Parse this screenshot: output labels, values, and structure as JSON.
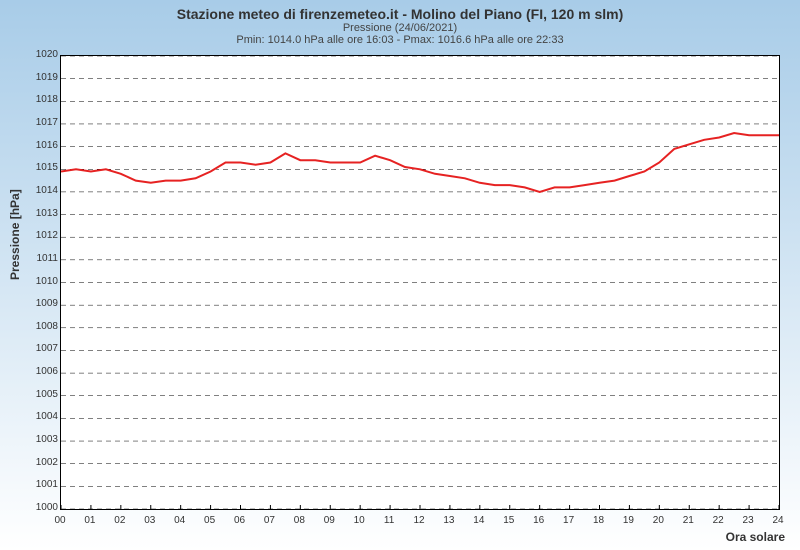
{
  "chart": {
    "type": "line",
    "title": "Stazione meteo di firenzemeteo.it - Molino del Piano (FI, 120 m slm)",
    "subtitle1": "Pressione (24/06/2021)",
    "subtitle2": "Pmin: 1014.0 hPa alle ore 16:03 - Pmax: 1016.6 hPa alle ore 22:33",
    "ylabel": "Pressione [hPa]",
    "xlabel": "Ora solare",
    "background_gradient_top": "#a8cce8",
    "background_gradient_bottom": "#ffffff",
    "plot_background": "#ffffff",
    "line_color": "#e62222",
    "line_width": 2,
    "grid_color": "#000000",
    "grid_style": "dashed",
    "border_color": "#000000",
    "xlim": [
      0,
      24
    ],
    "ylim": [
      1000,
      1020
    ],
    "xtick_step": 1,
    "ytick_step": 1,
    "title_fontsize": 14,
    "subtitle_fontsize": 11,
    "tick_fontsize": 10,
    "label_fontsize": 12,
    "x": [
      0,
      0.5,
      1,
      1.5,
      2,
      2.5,
      3,
      3.5,
      4,
      4.5,
      5,
      5.5,
      6,
      6.5,
      7,
      7.5,
      8,
      8.5,
      9,
      9.5,
      10,
      10.5,
      11,
      11.5,
      12,
      12.5,
      13,
      13.5,
      14,
      14.5,
      15,
      15.5,
      16,
      16.5,
      17,
      17.5,
      18,
      18.5,
      19,
      19.5,
      20,
      20.5,
      21,
      21.5,
      22,
      22.5,
      23,
      23.5,
      24
    ],
    "y": [
      1014.9,
      1015.0,
      1014.9,
      1015.0,
      1014.8,
      1014.5,
      1014.4,
      1014.5,
      1014.5,
      1014.6,
      1014.9,
      1015.3,
      1015.3,
      1015.2,
      1015.3,
      1015.7,
      1015.4,
      1015.4,
      1015.3,
      1015.3,
      1015.3,
      1015.6,
      1015.4,
      1015.1,
      1015.0,
      1014.8,
      1014.7,
      1014.6,
      1014.4,
      1014.3,
      1014.3,
      1014.2,
      1014.0,
      1014.2,
      1014.2,
      1014.3,
      1014.4,
      1014.5,
      1014.7,
      1014.9,
      1015.3,
      1015.9,
      1016.1,
      1016.3,
      1016.4,
      1016.6,
      1016.5,
      1016.5,
      1016.5
    ]
  }
}
